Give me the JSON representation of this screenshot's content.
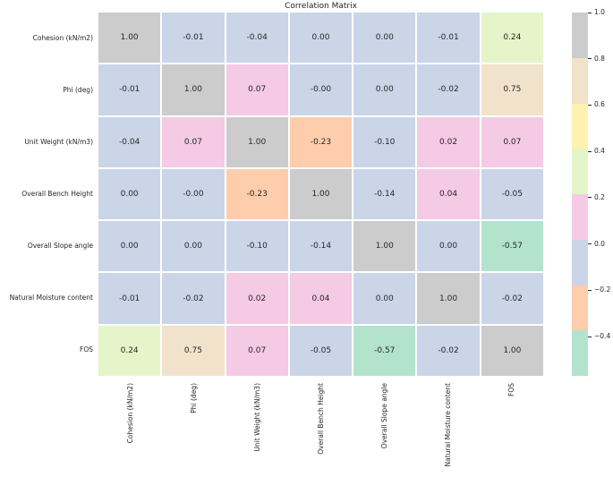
{
  "title": "Correlation Matrix",
  "chart_data": {
    "type": "heatmap",
    "title": "Correlation Matrix",
    "categories": [
      "Cohesion (kN/m2)",
      "Phi (deg)",
      "Unit Weight (kN/m3)",
      "Overall Bench Height",
      "Overall Slope angle",
      "Natural Moisture content",
      "FOS"
    ],
    "matrix": [
      [
        1.0,
        -0.01,
        -0.04,
        0.0,
        0.0,
        -0.01,
        0.24
      ],
      [
        -0.01,
        1.0,
        0.07,
        -0.0,
        0.0,
        -0.02,
        0.75
      ],
      [
        -0.04,
        0.07,
        1.0,
        -0.23,
        -0.1,
        0.02,
        0.07
      ],
      [
        0.0,
        -0.0,
        -0.23,
        1.0,
        -0.14,
        0.04,
        -0.05
      ],
      [
        0.0,
        0.0,
        -0.1,
        -0.14,
        1.0,
        0.0,
        -0.57
      ],
      [
        -0.01,
        -0.02,
        0.02,
        0.04,
        0.0,
        1.0,
        -0.02
      ],
      [
        0.24,
        0.75,
        0.07,
        -0.05,
        -0.57,
        -0.02,
        1.0
      ]
    ],
    "cell_labels": [
      [
        "1.00",
        "-0.01",
        "-0.04",
        "0.00",
        "0.00",
        "-0.01",
        "0.24"
      ],
      [
        "-0.01",
        "1.00",
        "0.07",
        "-0.00",
        "0.00",
        "-0.02",
        "0.75"
      ],
      [
        "-0.04",
        "0.07",
        "1.00",
        "-0.23",
        "-0.10",
        "0.02",
        "0.07"
      ],
      [
        "0.00",
        "-0.00",
        "-0.23",
        "1.00",
        "-0.14",
        "0.04",
        "-0.05"
      ],
      [
        "0.00",
        "0.00",
        "-0.10",
        "-0.14",
        "1.00",
        "0.00",
        "-0.57"
      ],
      [
        "-0.01",
        "-0.02",
        "0.02",
        "0.04",
        "0.00",
        "1.00",
        "-0.02"
      ],
      [
        "0.24",
        "0.75",
        "0.07",
        "-0.05",
        "-0.57",
        "-0.02",
        "1.00"
      ]
    ],
    "annotations_on": true,
    "grid": false,
    "colorbar": {
      "position": "right",
      "vmin": -0.57,
      "vmax": 1.0,
      "palette_high_to_low": [
        "#cccccc",
        "#f1e2cc",
        "#fff2ae",
        "#e6f5c9",
        "#f4cae4",
        "#cbd5e8",
        "#fdcdac",
        "#b3e2cd"
      ],
      "tick_labels": [
        "1.0",
        "0.8",
        "0.6",
        "0.4",
        "0.2",
        "0.0",
        "−0.2",
        "−0.4"
      ],
      "tick_values": [
        1.0,
        0.8,
        0.6,
        0.4,
        0.2,
        0.0,
        -0.2,
        -0.4
      ]
    }
  },
  "colors": {
    "background": "#ffffff",
    "annotation_text": "#262626",
    "tick_text": "#262626"
  }
}
